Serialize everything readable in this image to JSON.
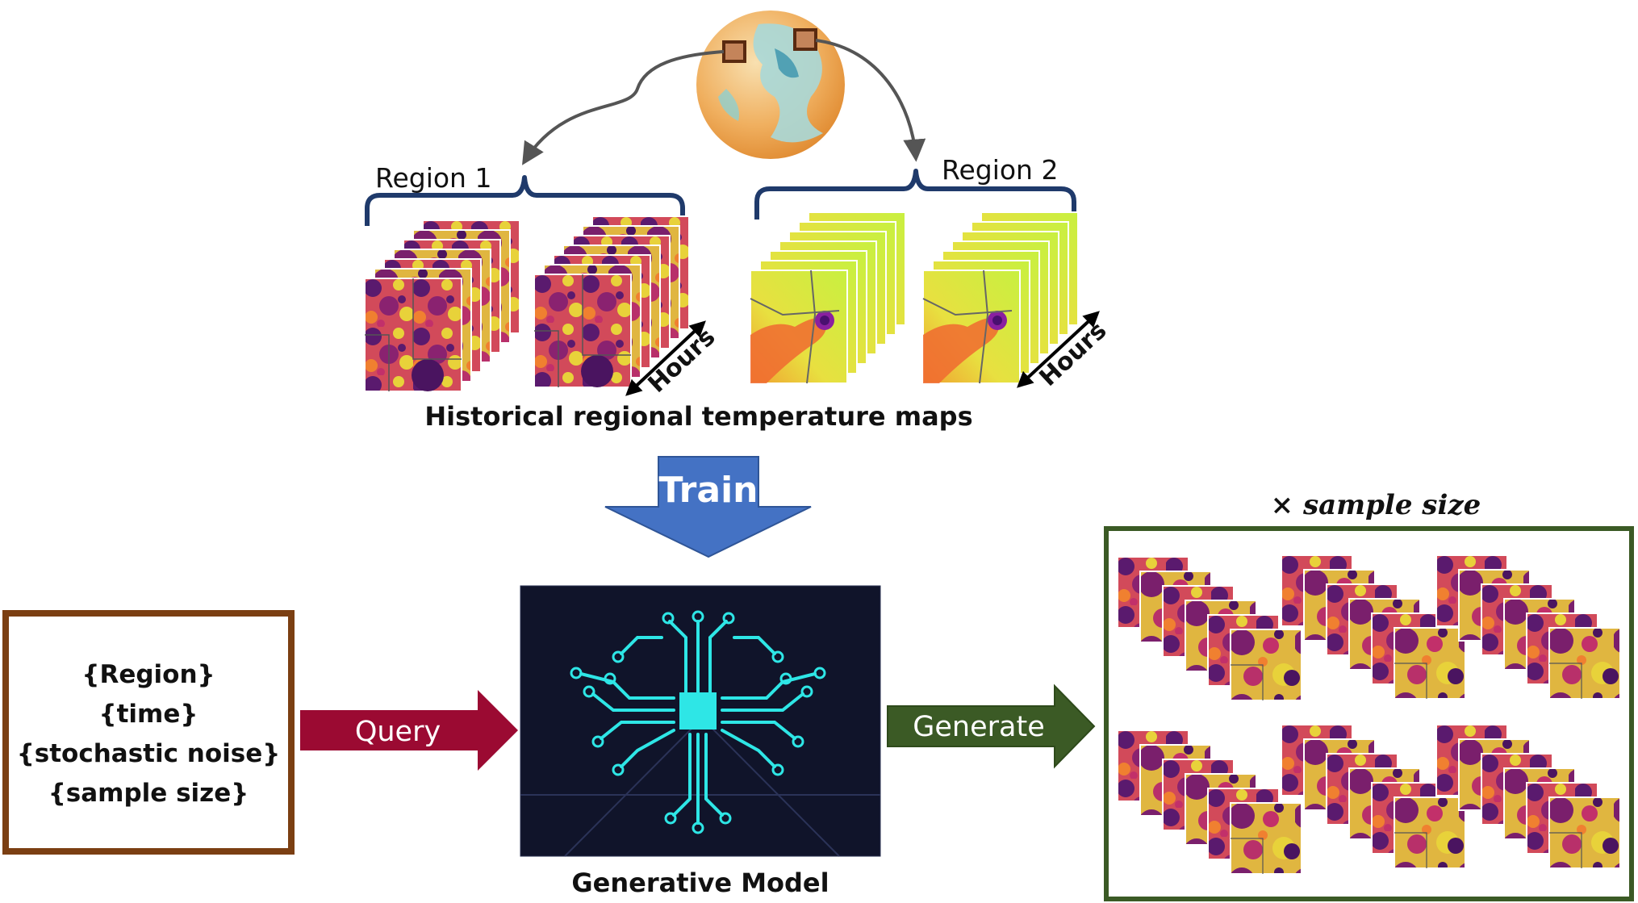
{
  "regions": [
    {
      "label": "Region 1"
    },
    {
      "label": "Region 2"
    }
  ],
  "stack_axis_label": "Hours",
  "maps_caption": "Historical regional temperature maps",
  "train_label": "Train",
  "query_box": {
    "lines": [
      "{Region}",
      "{time}",
      "{stochastic noise}",
      "{sample size}"
    ]
  },
  "query_label": "Query",
  "model_label": "Generative Model",
  "generate_label": "Generate",
  "output_label": "× sample size",
  "colors": {
    "heat_dark": "#5a1a6e",
    "heat_mid": "#c2306a",
    "heat_warm": "#f08030",
    "heat_yellow": "#e8d23a",
    "brace": "#1f3a6b",
    "train_arrow": "#4472c4",
    "query_arrow": "#9b0a32",
    "generate_arrow": "#3b5a25",
    "query_box_border": "#7b3f12",
    "output_box_border": "#3b5a25",
    "circuit": "#2ee6e6",
    "model_bg": "#10142a"
  }
}
